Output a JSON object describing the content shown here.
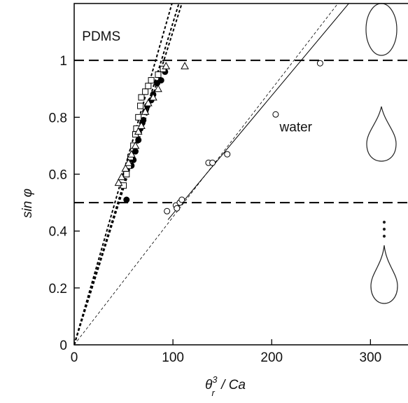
{
  "chart_data": {
    "type": "scatter",
    "x_label": {
      "base": "θ",
      "sub": "r",
      "sup": "3",
      "rest": " / Ca"
    },
    "y_label": "sin φ",
    "annotations": [
      {
        "text": "PDMS",
        "x": 8,
        "y": 1.07
      },
      {
        "text": "water",
        "x": 208,
        "y": 0.75
      }
    ],
    "xlim": [
      0,
      338
    ],
    "ylim": [
      0,
      1.2
    ],
    "xticks": [
      0,
      100,
      200,
      300
    ],
    "yticks": [
      0,
      0.2,
      0.4,
      0.6,
      0.8,
      1
    ],
    "hlines": [
      1,
      0.5
    ],
    "series": [
      {
        "marker": "filled-circle",
        "color": "#000000",
        "x": [
          53,
          58,
          60,
          62,
          65,
          67,
          69,
          70,
          72,
          74,
          78,
          80,
          84,
          88,
          92
        ],
        "values": [
          0.51,
          0.63,
          0.65,
          0.68,
          0.72,
          0.76,
          0.78,
          0.79,
          0.82,
          0.84,
          0.86,
          0.88,
          0.92,
          0.93,
          0.96
        ]
      },
      {
        "marker": "open-square",
        "color": "#000000",
        "x": [
          50,
          53,
          55,
          57,
          60,
          62,
          63,
          65,
          67,
          68,
          72,
          75,
          78,
          85,
          90
        ],
        "values": [
          0.56,
          0.6,
          0.63,
          0.66,
          0.7,
          0.74,
          0.76,
          0.8,
          0.84,
          0.87,
          0.89,
          0.91,
          0.93,
          0.95,
          0.97
        ]
      },
      {
        "marker": "open-triangle",
        "color": "#000000",
        "x": [
          45,
          48,
          52,
          55,
          58,
          62,
          65,
          68,
          72,
          75,
          80,
          85,
          93,
          112
        ],
        "values": [
          0.57,
          0.59,
          0.62,
          0.64,
          0.67,
          0.7,
          0.75,
          0.77,
          0.82,
          0.85,
          0.87,
          0.9,
          0.98,
          0.98
        ]
      },
      {
        "marker": "open-circle",
        "color": "#000000",
        "x": [
          94,
          103,
          104,
          107,
          109,
          136,
          140,
          155,
          204,
          249
        ],
        "values": [
          0.47,
          0.49,
          0.48,
          0.5,
          0.51,
          0.64,
          0.64,
          0.67,
          0.81,
          0.99
        ]
      }
    ],
    "fit_lines": [
      {
        "x": [
          0,
          99
        ],
        "values": [
          0,
          1.2
        ],
        "style": "dashed"
      },
      {
        "x": [
          0,
          106
        ],
        "values": [
          0,
          1.2
        ],
        "style": "dashed"
      },
      {
        "x": [
          0,
          109
        ],
        "values": [
          0,
          1.2
        ],
        "style": "dashed"
      },
      {
        "x": [
          0,
          267
        ],
        "values": [
          0,
          1.2
        ],
        "style": "thin-dashed"
      },
      {
        "x": [
          95,
          278
        ],
        "values": [
          0.44,
          1.2
        ],
        "style": "solid"
      }
    ]
  }
}
